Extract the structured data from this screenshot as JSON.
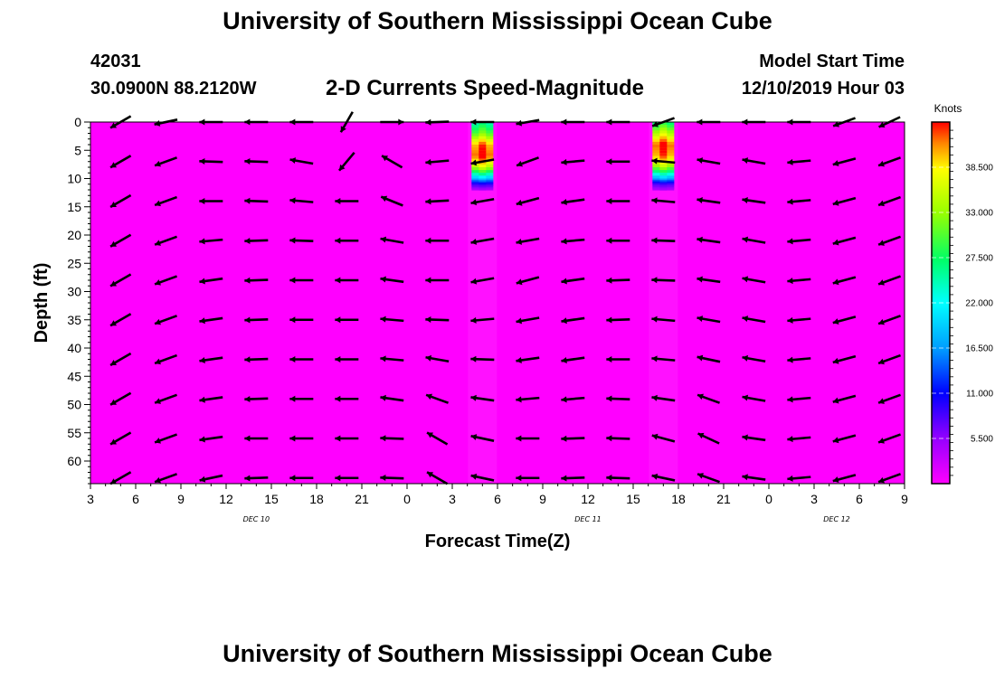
{
  "header": {
    "title": "University of Southern Mississippi Ocean Cube",
    "station_id": "42031",
    "station_location": "30.0900N 88.2120W",
    "chart_title": "2-D Currents Speed-Magnitude",
    "model_start_label": "Model Start Time",
    "model_start_value": "12/10/2019 Hour 03"
  },
  "footer": {
    "title": "University of Southern Mississippi Ocean Cube"
  },
  "colors": {
    "background_field": "#ff00ff",
    "arrow": "#000000"
  },
  "chart_data": {
    "type": "heatmap",
    "title": "2-D Currents Speed-Magnitude",
    "xlabel": "Forecast Time(Z)",
    "ylabel": "Depth (ft)",
    "x_tick_labels": [
      "3",
      "6",
      "9",
      "12",
      "15",
      "18",
      "21",
      "0",
      "3",
      "6",
      "9",
      "12",
      "15",
      "18",
      "21",
      "0",
      "3",
      "6",
      "9"
    ],
    "x_range_hours": [
      0,
      54
    ],
    "y_range": [
      0,
      64
    ],
    "y_ticks": [
      0,
      5,
      10,
      15,
      20,
      25,
      30,
      35,
      40,
      45,
      50,
      55,
      60
    ],
    "date_labels": [
      {
        "text": "DEC 10",
        "hour": 11
      },
      {
        "text": "DEC 11",
        "hour": 33
      },
      {
        "text": "DEC 12",
        "hour": 49.5
      }
    ],
    "colorbar": {
      "units": "Knots",
      "tick_values": [
        "5.500",
        "11.000",
        "16.500",
        "22.000",
        "27.500",
        "33.000",
        "38.500"
      ],
      "range": [
        0,
        44
      ]
    },
    "speed_columns": [
      {
        "hour": 26,
        "profile": [
          {
            "depth": 0,
            "speed": 24
          },
          {
            "depth": 2,
            "speed": 30
          },
          {
            "depth": 4,
            "speed": 40
          },
          {
            "depth": 6,
            "speed": 42
          },
          {
            "depth": 8,
            "speed": 34
          },
          {
            "depth": 10,
            "speed": 18
          },
          {
            "depth": 11,
            "speed": 9
          },
          {
            "depth": 12,
            "speed": 4
          }
        ]
      },
      {
        "hour": 38,
        "profile": [
          {
            "depth": 0,
            "speed": 26
          },
          {
            "depth": 2,
            "speed": 34
          },
          {
            "depth": 4,
            "speed": 42
          },
          {
            "depth": 6,
            "speed": 40
          },
          {
            "depth": 8,
            "speed": 32
          },
          {
            "depth": 10,
            "speed": 17
          },
          {
            "depth": 11,
            "speed": 8
          },
          {
            "depth": 12,
            "speed": 4
          }
        ]
      }
    ],
    "vector_times_hours": [
      2,
      5,
      8,
      11,
      14,
      17,
      20,
      23,
      26,
      29,
      32,
      35,
      38,
      41,
      44,
      47,
      50,
      53
    ],
    "vector_depths_ft": [
      0,
      7,
      14,
      21,
      28,
      35,
      42,
      49,
      56,
      63
    ],
    "vector_rows": [
      [
        210,
        192,
        180,
        180,
        180,
        240,
        0,
        182,
        180,
        190,
        180,
        180,
        200,
        180,
        180,
        180,
        200,
        205
      ],
      [
        210,
        200,
        178,
        178,
        170,
        230,
        150,
        185,
        190,
        200,
        185,
        180,
        175,
        170,
        170,
        185,
        195,
        200
      ],
      [
        210,
        200,
        180,
        178,
        175,
        180,
        158,
        183,
        190,
        195,
        188,
        180,
        175,
        172,
        172,
        185,
        195,
        200
      ],
      [
        210,
        200,
        185,
        182,
        178,
        180,
        170,
        180,
        190,
        190,
        185,
        180,
        178,
        172,
        170,
        185,
        195,
        200
      ],
      [
        210,
        200,
        188,
        182,
        180,
        180,
        172,
        180,
        190,
        195,
        188,
        182,
        178,
        172,
        170,
        185,
        195,
        200
      ],
      [
        210,
        200,
        188,
        182,
        180,
        180,
        175,
        178,
        185,
        190,
        188,
        182,
        175,
        170,
        170,
        185,
        195,
        200
      ],
      [
        210,
        200,
        188,
        182,
        180,
        180,
        175,
        170,
        178,
        188,
        188,
        180,
        175,
        168,
        170,
        185,
        195,
        200
      ],
      [
        210,
        200,
        188,
        182,
        180,
        180,
        172,
        160,
        172,
        185,
        185,
        178,
        172,
        160,
        170,
        185,
        195,
        200
      ],
      [
        210,
        200,
        188,
        180,
        180,
        180,
        178,
        150,
        168,
        180,
        182,
        178,
        165,
        155,
        172,
        185,
        195,
        200
      ],
      [
        210,
        200,
        192,
        182,
        180,
        180,
        178,
        150,
        168,
        180,
        182,
        178,
        168,
        160,
        172,
        185,
        195,
        200
      ]
    ]
  }
}
